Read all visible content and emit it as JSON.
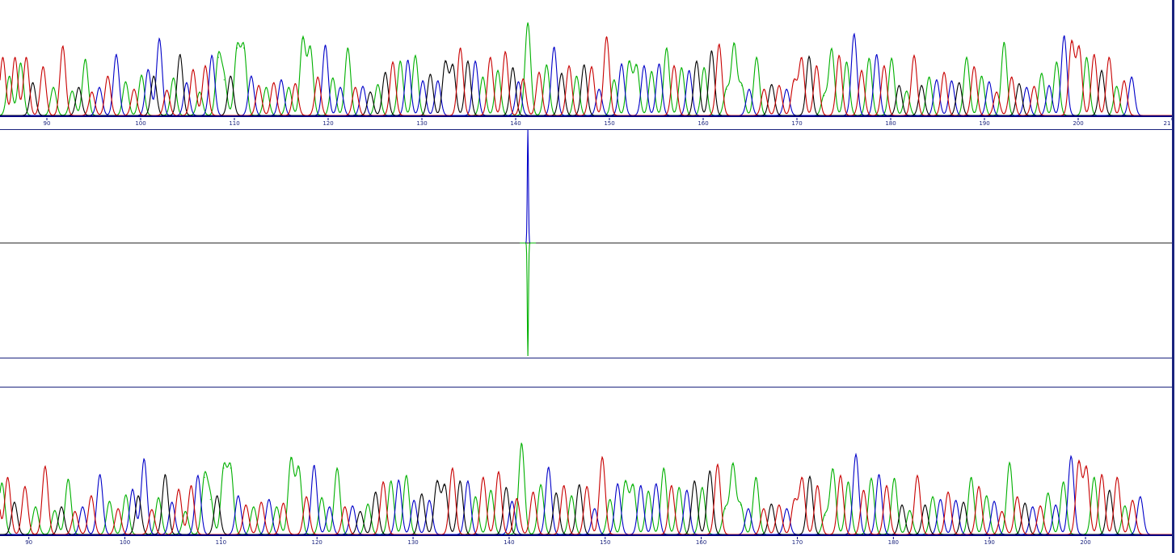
{
  "colors": {
    "A": "#00b000",
    "C": "#0000c8",
    "G": "#000000",
    "T": "#c80000",
    "frame": "#1a237e",
    "axis": "#000080"
  },
  "chart_data": [
    {
      "type": "line",
      "panel": "top-chromatogram",
      "x_ticks": [
        "90",
        "100",
        "110",
        "120",
        "130",
        "140",
        "150",
        "160",
        "170",
        "180",
        "190",
        "200",
        "21"
      ],
      "xlim": [
        85,
        210
      ],
      "peaks": [
        [
          "T",
          85.3,
          0.62
        ],
        [
          "A",
          86.0,
          0.42
        ],
        [
          "T",
          86.6,
          0.62
        ],
        [
          "A",
          87.2,
          0.56
        ],
        [
          "T",
          87.8,
          0.62
        ],
        [
          "G",
          88.5,
          0.35
        ],
        [
          "T",
          89.6,
          0.52
        ],
        [
          "A",
          90.7,
          0.3
        ],
        [
          "T",
          91.7,
          0.74
        ],
        [
          "A",
          92.7,
          0.26
        ],
        [
          "G",
          93.4,
          0.3
        ],
        [
          "A",
          94.1,
          0.6
        ],
        [
          "T",
          94.8,
          0.25
        ],
        [
          "C",
          95.6,
          0.3
        ],
        [
          "T",
          96.5,
          0.42
        ],
        [
          "C",
          97.4,
          0.65
        ],
        [
          "A",
          98.4,
          0.36
        ],
        [
          "T",
          99.3,
          0.28
        ],
        [
          "A",
          100.1,
          0.43
        ],
        [
          "C",
          100.8,
          0.49
        ],
        [
          "G",
          101.4,
          0.42
        ],
        [
          "C",
          102.0,
          0.82
        ],
        [
          "T",
          102.8,
          0.27
        ],
        [
          "A",
          103.5,
          0.4
        ],
        [
          "G",
          104.2,
          0.65
        ],
        [
          "C",
          104.9,
          0.35
        ],
        [
          "T",
          105.6,
          0.49
        ],
        [
          "A",
          106.3,
          0.25
        ],
        [
          "T",
          106.9,
          0.53
        ],
        [
          "C",
          107.6,
          0.64
        ],
        [
          "A",
          108.3,
          0.62
        ],
        [
          "A",
          108.9,
          0.38
        ],
        [
          "G",
          109.6,
          0.42
        ],
        [
          "A",
          110.3,
          0.72
        ],
        [
          "A",
          111.0,
          0.72
        ],
        [
          "C",
          111.8,
          0.42
        ],
        [
          "T",
          112.6,
          0.32
        ],
        [
          "A",
          113.4,
          0.3
        ],
        [
          "T",
          114.2,
          0.35
        ],
        [
          "C",
          115.0,
          0.38
        ],
        [
          "A",
          115.8,
          0.3
        ],
        [
          "T",
          116.5,
          0.34
        ],
        [
          "A",
          117.3,
          0.82
        ],
        [
          "A",
          118.1,
          0.72
        ],
        [
          "T",
          118.9,
          0.41
        ],
        [
          "C",
          119.7,
          0.75
        ],
        [
          "A",
          120.5,
          0.4
        ],
        [
          "C",
          121.3,
          0.3
        ],
        [
          "A",
          122.1,
          0.72
        ],
        [
          "T",
          122.9,
          0.3
        ],
        [
          "C",
          123.7,
          0.31
        ],
        [
          "G",
          124.5,
          0.25
        ],
        [
          "A",
          125.3,
          0.33
        ],
        [
          "G",
          126.1,
          0.46
        ],
        [
          "T",
          126.9,
          0.57
        ],
        [
          "A",
          127.7,
          0.58
        ],
        [
          "C",
          128.5,
          0.59
        ],
        [
          "A",
          129.3,
          0.64
        ],
        [
          "C",
          130.1,
          0.37
        ],
        [
          "G",
          130.9,
          0.44
        ],
        [
          "C",
          131.7,
          0.37
        ],
        [
          "G",
          132.5,
          0.57
        ],
        [
          "G",
          133.3,
          0.53
        ],
        [
          "T",
          134.1,
          0.72
        ],
        [
          "G",
          134.9,
          0.58
        ],
        [
          "C",
          135.7,
          0.58
        ],
        [
          "A",
          136.5,
          0.41
        ],
        [
          "T",
          137.3,
          0.62
        ],
        [
          "A",
          138.1,
          0.48
        ],
        [
          "T",
          138.9,
          0.68
        ],
        [
          "G",
          139.7,
          0.51
        ],
        [
          "C",
          140.3,
          0.36
        ],
        [
          "T",
          140.8,
          0.39
        ],
        [
          "A",
          141.3,
          0.99
        ],
        [
          "T",
          142.5,
          0.46
        ],
        [
          "A",
          143.3,
          0.54
        ],
        [
          "C",
          144.1,
          0.73
        ],
        [
          "G",
          144.9,
          0.45
        ],
        [
          "T",
          145.7,
          0.53
        ],
        [
          "A",
          146.5,
          0.42
        ],
        [
          "G",
          147.3,
          0.54
        ],
        [
          "T",
          148.1,
          0.52
        ],
        [
          "C",
          148.9,
          0.28
        ],
        [
          "T",
          149.7,
          0.84
        ],
        [
          "A",
          150.5,
          0.38
        ],
        [
          "C",
          151.3,
          0.55
        ],
        [
          "A",
          152.1,
          0.57
        ],
        [
          "A",
          152.9,
          0.53
        ],
        [
          "C",
          153.7,
          0.53
        ],
        [
          "A",
          154.5,
          0.47
        ],
        [
          "C",
          155.3,
          0.55
        ],
        [
          "A",
          156.1,
          0.72
        ],
        [
          "T",
          156.9,
          0.53
        ],
        [
          "A",
          157.7,
          0.51
        ],
        [
          "C",
          158.5,
          0.48
        ],
        [
          "G",
          159.3,
          0.58
        ],
        [
          "A",
          160.1,
          0.51
        ],
        [
          "G",
          160.9,
          0.69
        ],
        [
          "T",
          161.7,
          0.76
        ],
        [
          "A",
          162.5,
          0.28
        ],
        [
          "A",
          163.3,
          0.76
        ],
        [
          "A",
          164.1,
          0.32
        ],
        [
          "C",
          164.9,
          0.28
        ],
        [
          "A",
          165.7,
          0.62
        ],
        [
          "T",
          166.5,
          0.28
        ],
        [
          "G",
          167.3,
          0.33
        ],
        [
          "T",
          168.1,
          0.32
        ],
        [
          "C",
          168.9,
          0.28
        ],
        [
          "T",
          169.7,
          0.37
        ],
        [
          "T",
          170.5,
          0.61
        ],
        [
          "G",
          171.3,
          0.63
        ],
        [
          "T",
          172.1,
          0.53
        ],
        [
          "A",
          172.9,
          0.21
        ],
        [
          "A",
          173.7,
          0.71
        ],
        [
          "T",
          174.5,
          0.64
        ],
        [
          "A",
          175.3,
          0.57
        ],
        [
          "C",
          176.1,
          0.87
        ],
        [
          "T",
          176.9,
          0.48
        ],
        [
          "A",
          177.7,
          0.61
        ],
        [
          "C",
          178.5,
          0.65
        ],
        [
          "T",
          179.3,
          0.53
        ],
        [
          "A",
          180.1,
          0.61
        ],
        [
          "G",
          180.9,
          0.32
        ],
        [
          "A",
          181.7,
          0.26
        ],
        [
          "T",
          182.5,
          0.64
        ],
        [
          "G",
          183.3,
          0.32
        ],
        [
          "A",
          184.1,
          0.41
        ],
        [
          "C",
          184.9,
          0.38
        ],
        [
          "T",
          185.7,
          0.46
        ],
        [
          "C",
          186.5,
          0.37
        ],
        [
          "G",
          187.3,
          0.35
        ],
        [
          "A",
          188.1,
          0.62
        ],
        [
          "T",
          188.9,
          0.52
        ],
        [
          "A",
          189.7,
          0.42
        ],
        [
          "C",
          190.5,
          0.36
        ],
        [
          "T",
          191.3,
          0.25
        ],
        [
          "A",
          192.1,
          0.78
        ],
        [
          "T",
          192.9,
          0.41
        ],
        [
          "G",
          193.7,
          0.34
        ],
        [
          "C",
          194.5,
          0.3
        ],
        [
          "T",
          195.3,
          0.31
        ],
        [
          "A",
          196.1,
          0.45
        ],
        [
          "C",
          196.9,
          0.32
        ],
        [
          "A",
          197.7,
          0.57
        ],
        [
          "C",
          198.5,
          0.85
        ],
        [
          "T",
          199.3,
          0.78
        ],
        [
          "T",
          200.1,
          0.72
        ],
        [
          "A",
          200.9,
          0.62
        ],
        [
          "T",
          201.7,
          0.65
        ],
        [
          "G",
          202.5,
          0.48
        ],
        [
          "T",
          203.3,
          0.62
        ],
        [
          "A",
          204.1,
          0.31
        ],
        [
          "T",
          204.9,
          0.37
        ],
        [
          "C",
          205.7,
          0.41
        ]
      ]
    },
    {
      "type": "line",
      "panel": "difference-trace",
      "xlim": [
        85,
        210
      ],
      "baseline": 0,
      "events": [
        {
          "base": "C",
          "x": 141.3,
          "value": 1.0
        },
        {
          "base": "A",
          "x": 141.3,
          "value": -1.0
        }
      ],
      "ylim": [
        -1,
        1
      ]
    },
    {
      "type": "line",
      "panel": "bottom-chromatogram",
      "x_ticks": [
        "90",
        "100",
        "110",
        "120",
        "130",
        "140",
        "150",
        "160",
        "170",
        "180",
        "190",
        "200"
      ],
      "xlim": [
        87,
        209
      ],
      "peaks_ref": "top"
    }
  ]
}
